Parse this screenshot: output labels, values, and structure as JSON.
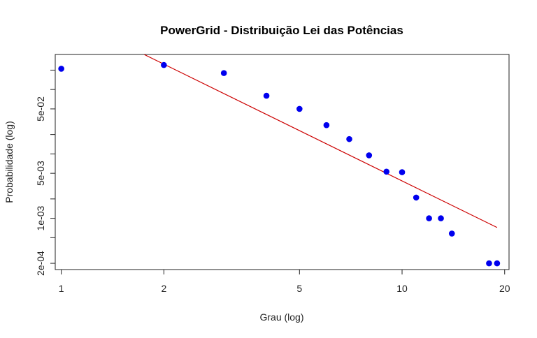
{
  "chart_data": {
    "type": "scatter",
    "title": "PowerGrid - Distribuição Lei das Potências",
    "xlabel": "Grau (log)",
    "ylabel": "Probabilidade (log)",
    "x_scale": "log",
    "y_scale": "log",
    "xlim": [
      0.96,
      20.6
    ],
    "ylim": [
      0.00016,
      0.35
    ],
    "x_ticks": [
      1,
      2,
      5,
      10,
      20
    ],
    "x_tick_labels": [
      "1",
      "2",
      "5",
      "10",
      "20"
    ],
    "y_ticks": [
      0.0002,
      0.001,
      0.005,
      0.05
    ],
    "y_tick_labels": [
      "2e-04",
      "1e-03",
      "5e-03",
      "5e-02"
    ],
    "y_minor_ticks": [
      0.0005,
      0.002,
      0.01,
      0.02,
      0.1,
      0.2
    ],
    "grid": false,
    "legend": "none",
    "points_color": "#0000ee",
    "line_color": "#cc0000",
    "points": [
      {
        "x": 1,
        "y": 0.21
      },
      {
        "x": 2,
        "y": 0.24
      },
      {
        "x": 3,
        "y": 0.18
      },
      {
        "x": 4,
        "y": 0.08
      },
      {
        "x": 5,
        "y": 0.05
      },
      {
        "x": 6,
        "y": 0.028
      },
      {
        "x": 7,
        "y": 0.017
      },
      {
        "x": 8,
        "y": 0.0095
      },
      {
        "x": 9,
        "y": 0.0053
      },
      {
        "x": 10,
        "y": 0.0052
      },
      {
        "x": 11,
        "y": 0.0021
      },
      {
        "x": 12,
        "y": 0.001
      },
      {
        "x": 13,
        "y": 0.001
      },
      {
        "x": 14,
        "y": 0.00058
      },
      {
        "x": 18,
        "y": 0.0002
      },
      {
        "x": 19,
        "y": 0.0002
      }
    ],
    "fit_line": [
      {
        "x": 1.75,
        "y": 0.35
      },
      {
        "x": 19,
        "y": 0.00072
      }
    ]
  }
}
